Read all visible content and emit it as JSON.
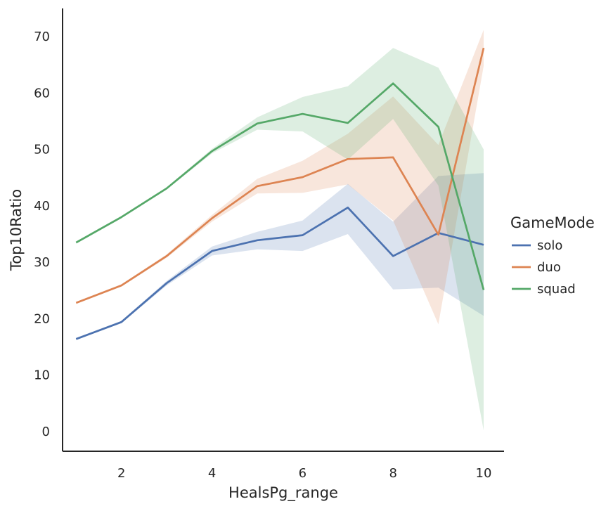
{
  "chart_data": {
    "type": "line",
    "title": "",
    "xlabel": "HealsPg_range",
    "ylabel": "Top10Ratio",
    "xlim": [
      0.7,
      10.45
    ],
    "ylim": [
      -3.5,
      75
    ],
    "xticks": [
      2,
      4,
      6,
      8,
      10
    ],
    "yticks": [
      0,
      10,
      20,
      30,
      40,
      50,
      60,
      70
    ],
    "grid": false,
    "legend": {
      "title": "GameMode",
      "placement": "right"
    },
    "x": [
      1,
      2,
      3,
      4,
      5,
      6,
      7,
      8,
      9,
      10
    ],
    "series": [
      {
        "name": "solo",
        "color": "#4c72b0",
        "values": [
          16.4,
          19.4,
          26.3,
          32.0,
          33.9,
          34.8,
          39.7,
          31.1,
          35.2,
          33.1
        ],
        "ci_lower": [
          16.2,
          19.2,
          25.9,
          31.2,
          32.3,
          32.0,
          35.0,
          25.2,
          25.5,
          20.5
        ],
        "ci_upper": [
          16.6,
          19.6,
          26.7,
          32.8,
          35.4,
          37.4,
          43.9,
          37.2,
          45.3,
          45.8
        ]
      },
      {
        "name": "duo",
        "color": "#dd8452",
        "values": [
          22.8,
          25.9,
          31.1,
          37.8,
          43.5,
          45.1,
          48.3,
          48.6,
          34.9,
          68.0
        ],
        "ci_lower": [
          22.6,
          25.7,
          30.8,
          37.2,
          42.2,
          42.3,
          43.8,
          37.4,
          19.0,
          64.8
        ],
        "ci_upper": [
          23.0,
          26.1,
          31.4,
          38.4,
          44.8,
          48.0,
          52.8,
          59.4,
          50.8,
          71.2
        ]
      },
      {
        "name": "squad",
        "color": "#55a868",
        "values": [
          33.5,
          38.0,
          43.1,
          49.7,
          54.6,
          56.3,
          54.7,
          61.7,
          54.0,
          25.1
        ],
        "ci_lower": [
          33.3,
          37.8,
          42.9,
          49.3,
          53.5,
          53.2,
          48.2,
          55.4,
          43.6,
          0.2
        ],
        "ci_upper": [
          33.7,
          38.2,
          43.3,
          50.1,
          55.7,
          59.3,
          61.2,
          68.0,
          64.5,
          50.0
        ]
      }
    ]
  }
}
